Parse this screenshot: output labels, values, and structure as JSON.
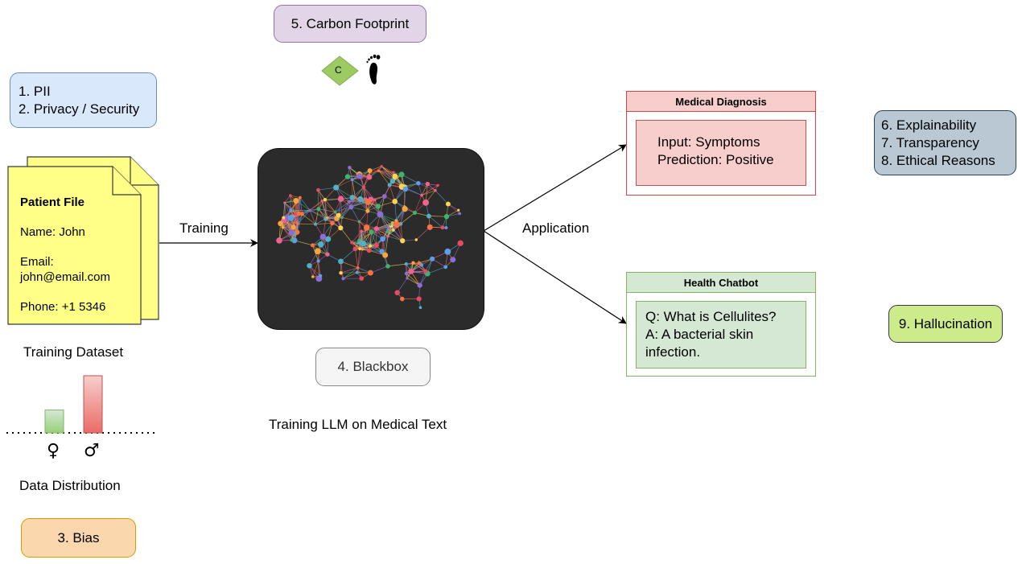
{
  "risk_labels": {
    "pii": "1. PII",
    "privacy": "2. Privacy / Security",
    "bias": "3. Bias",
    "blackbox": "4. Blackbox",
    "carbon": "5. Carbon Footprint",
    "explainability": "6. Explainability",
    "transparency": "7. Transparency",
    "ethical": "8. Ethical Reasons",
    "hallucination": "9. Hallucination"
  },
  "patient_file": {
    "title": "Patient File",
    "name": "Name: John",
    "email_label": "Email:",
    "email_value": "john@email.com",
    "phone": "Phone: +1 5346"
  },
  "labels": {
    "training_dataset": "Training Dataset",
    "data_distribution": "Data Distribution",
    "training_arrow": "Training",
    "application_arrow": "Application",
    "training_llm": "Training LLM on Medical Text",
    "carbon_symbol": "C"
  },
  "distribution": {
    "female_symbol": "♀",
    "male_symbol": "♂",
    "female_level": 0.4,
    "male_level": 1.0
  },
  "medical_diagnosis": {
    "title": "Medical Diagnosis",
    "input": "Input: Symptoms",
    "prediction": "Prediction: Positive"
  },
  "health_chatbot": {
    "title": "Health Chatbot",
    "question": "Q: What is Cellulites?",
    "answer_line1": "A: A bacterial skin",
    "answer_line2": "infection."
  },
  "colors": {
    "blue_box": "#dae8fc",
    "purple_box": "#e1d5e7",
    "orange_box": "#fad7ac",
    "gray_box": "#f5f5f5",
    "slate_box": "#bac8d3",
    "green_box": "#cdeb8b",
    "note_yellow": "#ffff88",
    "red_light": "#f8cecc",
    "green_light": "#d5e8d4",
    "brain_bg": "#2b2b2b"
  }
}
